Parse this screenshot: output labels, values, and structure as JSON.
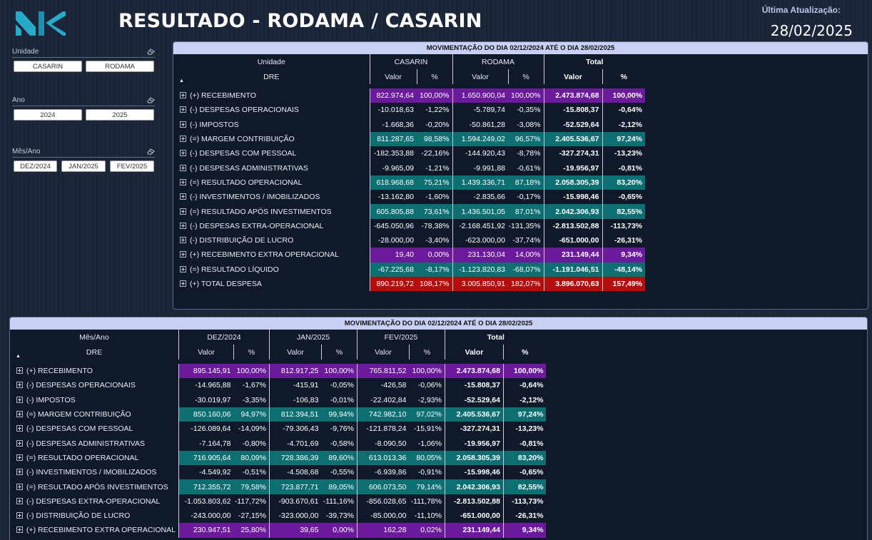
{
  "header": {
    "title": "RESULTADO - RODAMA / CASARIN",
    "update_label": "Última Atualização:",
    "update_date": "28/02/2025",
    "logo_color": "#27a9c9"
  },
  "slicers": [
    {
      "title": "Unidade",
      "options": [
        "CASARIN",
        "RODAMA"
      ]
    },
    {
      "title": "Ano",
      "options": [
        "2024",
        "2025"
      ]
    },
    {
      "title": "Mês/Ano",
      "options": [
        "DEZ/2024",
        "JAN/2025",
        "FEV/2025"
      ]
    }
  ],
  "colors": {
    "purple": "#6a1a9a",
    "teal": "#0d6f72",
    "red": "#b40d0d"
  },
  "matrix_unidade": {
    "title": "MOVIMENTAÇÃO DO DIA 02/12/2024 ATÉ O DIA 28/02/2025",
    "column_field": "Unidade",
    "row_field": "DRE",
    "groups": [
      "CASARIN",
      "RODAMA"
    ],
    "total_label": "Total",
    "valor_label": "Valor",
    "pct_label": "%",
    "rows": [
      {
        "label": "(+) RECEBIMENTO",
        "style": "purple",
        "cells": [
          "822.974,64",
          "100,00%",
          "1.650.900,04",
          "100,00%"
        ],
        "total": [
          "2.473.874,68",
          "100,00%"
        ]
      },
      {
        "label": "(-) DESPESAS OPERACIONAIS",
        "style": "",
        "cells": [
          "-10.018,63",
          "-1,22%",
          "-5.789,74",
          "-0,35%"
        ],
        "total": [
          "-15.808,37",
          "-0,64%"
        ]
      },
      {
        "label": "(-) IMPOSTOS",
        "style": "",
        "cells": [
          "-1.668,36",
          "-0,20%",
          "-50.861,28",
          "-3,08%"
        ],
        "total": [
          "-52.529,64",
          "-2,12%"
        ]
      },
      {
        "label": "(=) MARGEM CONTRIBUIÇÃO",
        "style": "teal",
        "cells": [
          "811.287,65",
          "98,58%",
          "1.594.249,02",
          "96,57%"
        ],
        "total": [
          "2.405.536,67",
          "97,24%"
        ]
      },
      {
        "label": "(-) DESPESAS COM PESSOAL",
        "style": "",
        "cells": [
          "-182.353,88",
          "-22,16%",
          "-144.920,43",
          "-8,78%"
        ],
        "total": [
          "-327.274,31",
          "-13,23%"
        ]
      },
      {
        "label": "(-) DESPESAS ADMINISTRATIVAS",
        "style": "",
        "cells": [
          "-9.965,09",
          "-1,21%",
          "-9.991,88",
          "-0,61%"
        ],
        "total": [
          "-19.956,97",
          "-0,81%"
        ]
      },
      {
        "label": "(=) RESULTADO OPERACIONAL",
        "style": "teal",
        "cells": [
          "618.968,68",
          "75,21%",
          "1.439.336,71",
          "87,18%"
        ],
        "total": [
          "2.058.305,39",
          "83,20%"
        ]
      },
      {
        "label": "(-) INVESTIMENTOS / IMOBILIZADOS",
        "style": "",
        "cells": [
          "-13.162,80",
          "-1,60%",
          "-2.835,66",
          "-0,17%"
        ],
        "total": [
          "-15.998,46",
          "-0,65%"
        ]
      },
      {
        "label": "(=) RESULTADO APÓS INVESTIMENTOS",
        "style": "teal",
        "cells": [
          "605.805,88",
          "73,61%",
          "1.436.501,05",
          "87,01%"
        ],
        "total": [
          "2.042.306,93",
          "82,55%"
        ]
      },
      {
        "label": "(-) DESPESAS EXTRA-OPERACIONAL",
        "style": "",
        "cells": [
          "-645.050,96",
          "-78,38%",
          "-2.168.451,92",
          "-131,35%"
        ],
        "total": [
          "-2.813.502,88",
          "-113,73%"
        ]
      },
      {
        "label": "(-) DISTRIBUIÇÃO DE LUCRO",
        "style": "",
        "cells": [
          "-28.000,00",
          "-3,40%",
          "-623.000,00",
          "-37,74%"
        ],
        "total": [
          "-651.000,00",
          "-26,31%"
        ]
      },
      {
        "label": "(+) RECEBIMENTO EXTRA OPERACIONAL",
        "style": "purple",
        "cells": [
          "19,40",
          "0,00%",
          "231.130,04",
          "14,00%"
        ],
        "total": [
          "231.149,44",
          "9,34%"
        ]
      },
      {
        "label": "(=) RESULTADO LÍQUIDO",
        "style": "teal",
        "cells": [
          "-67.225,68",
          "-8,17%",
          "-1.123.820,83",
          "-68,07%"
        ],
        "total": [
          "-1.191.046,51",
          "-48,14%"
        ]
      },
      {
        "label": "(+) TOTAL DESPESA",
        "style": "red",
        "cells": [
          "890.219,72",
          "108,17%",
          "3.005.850,91",
          "182,07%"
        ],
        "total": [
          "3.896.070,63",
          "157,49%"
        ]
      }
    ]
  },
  "matrix_mes": {
    "title": "MOVIMENTAÇÃO DO DIA 02/12/2024 ATÉ O DIA 28/02/2025",
    "column_field": "Mês/Ano",
    "row_field": "DRE",
    "groups": [
      "DEZ/2024",
      "JAN/2025",
      "FEV/2025"
    ],
    "total_label": "Total",
    "valor_label": "Valor",
    "pct_label": "%",
    "rows": [
      {
        "label": "(+) RECEBIMENTO",
        "style": "purple",
        "cells": [
          "895.145,91",
          "100,00%",
          "812.917,25",
          "100,00%",
          "765.811,52",
          "100,00%"
        ],
        "total": [
          "2.473.874,68",
          "100,00%"
        ]
      },
      {
        "label": "(-) DESPESAS OPERACIONAIS",
        "style": "",
        "cells": [
          "-14.965,88",
          "-1,67%",
          "-415,91",
          "-0,05%",
          "-426,58",
          "-0,06%"
        ],
        "total": [
          "-15.808,37",
          "-0,64%"
        ]
      },
      {
        "label": "(-) IMPOSTOS",
        "style": "",
        "cells": [
          "-30.019,97",
          "-3,35%",
          "-106,83",
          "-0,01%",
          "-22.402,84",
          "-2,93%"
        ],
        "total": [
          "-52.529,64",
          "-2,12%"
        ]
      },
      {
        "label": "(=) MARGEM CONTRIBUIÇÃO",
        "style": "teal",
        "cells": [
          "850.160,06",
          "94,97%",
          "812.394,51",
          "99,94%",
          "742.982,10",
          "97,02%"
        ],
        "total": [
          "2.405.536,67",
          "97,24%"
        ]
      },
      {
        "label": "(-) DESPESAS COM PESSOAL",
        "style": "",
        "cells": [
          "-126.089,64",
          "-14,09%",
          "-79.306,43",
          "-9,76%",
          "-121.878,24",
          "-15,91%"
        ],
        "total": [
          "-327.274,31",
          "-13,23%"
        ]
      },
      {
        "label": "(-) DESPESAS ADMINISTRATIVAS",
        "style": "",
        "cells": [
          "-7.164,78",
          "-0,80%",
          "-4.701,69",
          "-0,58%",
          "-8.090,50",
          "-1,06%"
        ],
        "total": [
          "-19.956,97",
          "-0,81%"
        ]
      },
      {
        "label": "(=) RESULTADO OPERACIONAL",
        "style": "teal",
        "cells": [
          "716.905,64",
          "80,09%",
          "728.386,39",
          "89,60%",
          "613.013,36",
          "80,05%"
        ],
        "total": [
          "2.058.305,39",
          "83,20%"
        ]
      },
      {
        "label": "(-) INVESTIMENTOS / IMOBILIZADOS",
        "style": "",
        "cells": [
          "-4.549,92",
          "-0,51%",
          "-4.508,68",
          "-0,55%",
          "-6.939,86",
          "-0,91%"
        ],
        "total": [
          "-15.998,46",
          "-0,65%"
        ]
      },
      {
        "label": "(=) RESULTADO APÓS INVESTIMENTOS",
        "style": "teal",
        "cells": [
          "712.355,72",
          "79,58%",
          "723.877,71",
          "89,05%",
          "606.073,50",
          "79,14%"
        ],
        "total": [
          "2.042.306,93",
          "82,55%"
        ]
      },
      {
        "label": "(-) DESPESAS EXTRA-OPERACIONAL",
        "style": "",
        "cells": [
          "-1.053.803,62",
          "-117,72%",
          "-903.670,61",
          "-111,16%",
          "-856.028,65",
          "-111,78%"
        ],
        "total": [
          "-2.813.502,88",
          "-113,73%"
        ]
      },
      {
        "label": "(-) DISTRIBUIÇÃO DE LUCRO",
        "style": "",
        "cells": [
          "-243.000,00",
          "-27,15%",
          "-323.000,00",
          "-39,73%",
          "-85.000,00",
          "-11,10%"
        ],
        "total": [
          "-651.000,00",
          "-26,31%"
        ]
      },
      {
        "label": "(+) RECEBIMENTO EXTRA OPERACIONAL",
        "style": "purple",
        "cells": [
          "230.947,51",
          "25,80%",
          "39,65",
          "0,00%",
          "162,28",
          "0,02%"
        ],
        "total": [
          "231.149,44",
          "9,34%"
        ]
      }
    ]
  }
}
